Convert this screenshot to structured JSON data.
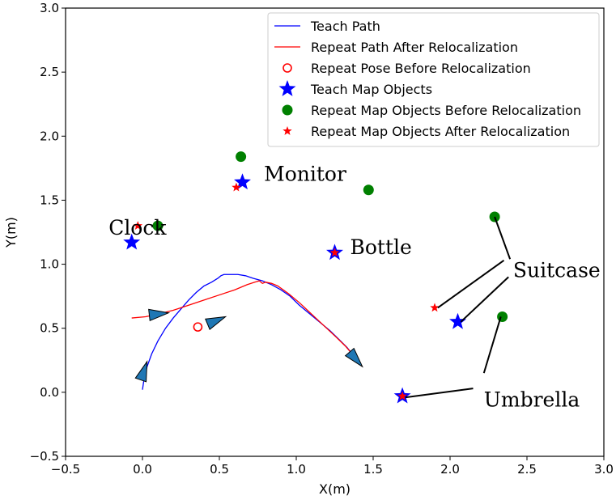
{
  "chart_data": {
    "type": "scatter",
    "xlabel": "X(m)",
    "ylabel": "Y(m)",
    "xlim": [
      -0.5,
      3.0
    ],
    "ylim": [
      -0.5,
      3.0
    ],
    "xticks": [
      -0.5,
      0.0,
      0.5,
      1.0,
      1.5,
      2.0,
      2.5,
      3.0
    ],
    "yticks": [
      -0.5,
      0.0,
      0.5,
      1.0,
      1.5,
      2.0,
      2.5,
      3.0
    ],
    "xtick_labels": [
      "−0.5",
      "0.0",
      "0.5",
      "1.0",
      "1.5",
      "2.0",
      "2.5",
      "3.0"
    ],
    "ytick_labels": [
      "−0.5",
      "0.0",
      "0.5",
      "1.0",
      "1.5",
      "2.0",
      "2.5",
      "3.0"
    ],
    "grid": false,
    "legend_position": "top-right",
    "colors": {
      "teach": "#0000ff",
      "repeat": "#ff0000",
      "before": "#008000",
      "arrow_fill": "#1f77b4"
    },
    "legend": [
      {
        "label": "Teach Path",
        "marker": "line",
        "color": "#0000ff"
      },
      {
        "label": "Repeat Path After Relocalization",
        "marker": "line",
        "color": "#ff0000"
      },
      {
        "label": "Repeat Pose Before Relocalization",
        "marker": "open-circle",
        "color": "#ff0000"
      },
      {
        "label": "Teach Map Objects",
        "marker": "star-large",
        "color": "#0000ff"
      },
      {
        "label": "Repeat Map Objects Before Relocalization",
        "marker": "dot",
        "color": "#008000"
      },
      {
        "label": "Repeat Map Objects After Relocalization",
        "marker": "star-small",
        "color": "#ff0000"
      }
    ],
    "series": [
      {
        "name": "Teach Path",
        "type": "line",
        "color": "#0000ff",
        "points": [
          [
            0.0,
            0.02
          ],
          [
            0.01,
            0.1
          ],
          [
            0.03,
            0.2
          ],
          [
            0.06,
            0.3
          ],
          [
            0.1,
            0.4
          ],
          [
            0.15,
            0.5
          ],
          [
            0.2,
            0.58
          ],
          [
            0.25,
            0.65
          ],
          [
            0.3,
            0.72
          ],
          [
            0.35,
            0.78
          ],
          [
            0.4,
            0.83
          ],
          [
            0.45,
            0.86
          ],
          [
            0.49,
            0.89
          ],
          [
            0.51,
            0.91
          ],
          [
            0.53,
            0.92
          ],
          [
            0.57,
            0.92
          ],
          [
            0.62,
            0.92
          ],
          [
            0.67,
            0.91
          ],
          [
            0.72,
            0.89
          ],
          [
            0.78,
            0.87
          ],
          [
            0.84,
            0.84
          ],
          [
            0.9,
            0.8
          ],
          [
            0.96,
            0.75
          ],
          [
            1.02,
            0.68
          ],
          [
            1.08,
            0.62
          ],
          [
            1.15,
            0.55
          ],
          [
            1.22,
            0.48
          ],
          [
            1.28,
            0.41
          ],
          [
            1.33,
            0.35
          ],
          [
            1.37,
            0.29
          ],
          [
            1.4,
            0.23
          ]
        ]
      },
      {
        "name": "Repeat Path After Relocalization",
        "type": "line",
        "color": "#ff0000",
        "points": [
          [
            -0.07,
            0.58
          ],
          [
            0.02,
            0.59
          ],
          [
            0.1,
            0.61
          ],
          [
            0.2,
            0.64
          ],
          [
            0.3,
            0.68
          ],
          [
            0.4,
            0.72
          ],
          [
            0.5,
            0.76
          ],
          [
            0.6,
            0.8
          ],
          [
            0.68,
            0.84
          ],
          [
            0.73,
            0.86
          ],
          [
            0.76,
            0.87
          ],
          [
            0.78,
            0.85
          ],
          [
            0.8,
            0.86
          ],
          [
            0.84,
            0.85
          ],
          [
            0.88,
            0.83
          ],
          [
            0.95,
            0.77
          ],
          [
            1.02,
            0.7
          ],
          [
            1.1,
            0.61
          ],
          [
            1.18,
            0.52
          ],
          [
            1.26,
            0.43
          ],
          [
            1.32,
            0.36
          ],
          [
            1.37,
            0.29
          ],
          [
            1.4,
            0.23
          ]
        ]
      },
      {
        "name": "Repeat Pose Before Relocalization",
        "type": "scatter",
        "marker": "open-circle",
        "color": "#ff0000",
        "points": [
          [
            0.36,
            0.51
          ]
        ]
      },
      {
        "name": "Teach Map Objects",
        "type": "scatter",
        "marker": "star-large",
        "color": "#0000ff",
        "points": [
          [
            -0.07,
            1.17
          ],
          [
            0.65,
            1.64
          ],
          [
            1.25,
            1.09
          ],
          [
            2.05,
            0.55
          ],
          [
            1.69,
            -0.03
          ]
        ]
      },
      {
        "name": "Repeat Map Objects Before Relocalization",
        "type": "scatter",
        "marker": "dot",
        "color": "#008000",
        "points": [
          [
            0.1,
            1.3
          ],
          [
            0.64,
            1.84
          ],
          [
            1.47,
            1.58
          ],
          [
            2.29,
            1.37
          ],
          [
            2.34,
            0.59
          ]
        ]
      },
      {
        "name": "Repeat Map Objects After Relocalization",
        "type": "scatter",
        "marker": "star-small",
        "color": "#ff0000",
        "points": [
          [
            -0.03,
            1.3
          ],
          [
            0.61,
            1.6
          ],
          [
            1.25,
            1.09
          ],
          [
            1.9,
            0.66
          ],
          [
            1.69,
            -0.03
          ]
        ]
      }
    ],
    "pose_arrows": [
      {
        "tail": [
          0.01,
          0.17
        ],
        "tip": [
          0.03,
          0.24
        ]
      },
      {
        "tail": [
          0.02,
          0.6
        ],
        "tip": [
          0.17,
          0.62
        ]
      },
      {
        "tail": [
          0.4,
          0.52
        ],
        "tip": [
          0.54,
          0.59
        ]
      },
      {
        "tail": [
          1.35,
          0.31
        ],
        "tip": [
          1.43,
          0.2
        ]
      }
    ],
    "annotations": [
      {
        "text": "Clock",
        "at": [
          -0.22,
          1.23
        ],
        "anchor": "start",
        "leaders": []
      },
      {
        "text": "Monitor",
        "at": [
          0.79,
          1.65
        ],
        "anchor": "start",
        "leaders": []
      },
      {
        "text": "Bottle",
        "at": [
          1.35,
          1.08
        ],
        "anchor": "start",
        "leaders": []
      },
      {
        "text": "Suitcase",
        "at": [
          2.41,
          0.9
        ],
        "anchor": "start",
        "leaders": [
          [
            [
              2.39,
              1.04
            ],
            [
              2.29,
              1.37
            ]
          ],
          [
            [
              2.35,
              1.03
            ],
            [
              1.92,
              0.66
            ]
          ],
          [
            [
              2.38,
              0.9
            ],
            [
              2.07,
              0.55
            ]
          ]
        ]
      },
      {
        "text": "Umbrella",
        "at": [
          2.22,
          -0.11
        ],
        "anchor": "start",
        "leaders": [
          [
            [
              2.22,
              0.15
            ],
            [
              2.33,
              0.59
            ]
          ],
          [
            [
              2.15,
              0.03
            ],
            [
              1.71,
              -0.04
            ]
          ]
        ]
      }
    ]
  }
}
